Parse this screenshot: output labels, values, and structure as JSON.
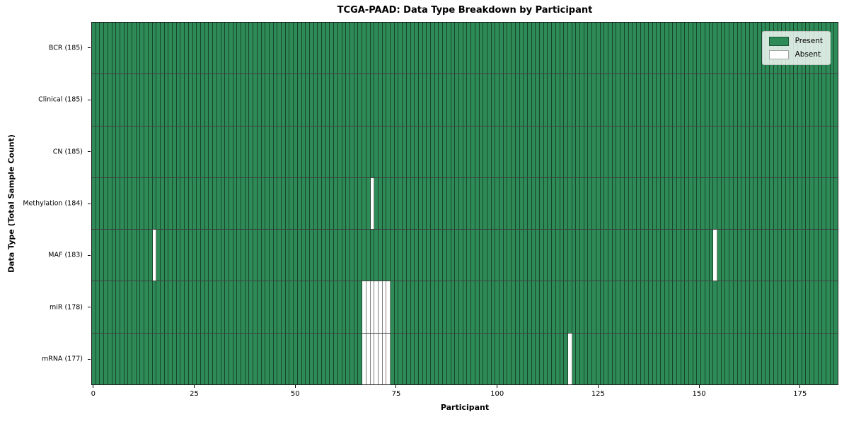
{
  "chart_data": {
    "type": "heatmap",
    "title": "TCGA-PAAD: Data Type Breakdown by Participant",
    "xlabel": "Participant",
    "ylabel": "Data Type (Total Sample Count)",
    "n_participants": 185,
    "x_axis_range": [
      -0.5,
      184.5
    ],
    "x_ticks": [
      0,
      25,
      50,
      75,
      100,
      125,
      150,
      175
    ],
    "grid": false,
    "legend_position": "upper-right",
    "rows": [
      {
        "data_type": "BCR",
        "label": "BCR (185)",
        "total_samples": 185,
        "absent_participants": []
      },
      {
        "data_type": "Clinical",
        "label": "Clinical (185)",
        "total_samples": 185,
        "absent_participants": []
      },
      {
        "data_type": "CN",
        "label": "CN (185)",
        "total_samples": 185,
        "absent_participants": []
      },
      {
        "data_type": "Methylation",
        "label": "Methylation (184)",
        "total_samples": 184,
        "absent_participants": [
          69
        ]
      },
      {
        "data_type": "MAF",
        "label": "MAF (183)",
        "total_samples": 183,
        "absent_participants": [
          15,
          154
        ]
      },
      {
        "data_type": "miR",
        "label": "miR (178)",
        "total_samples": 178,
        "absent_participants": [
          67,
          68,
          69,
          70,
          71,
          72,
          73
        ]
      },
      {
        "data_type": "mRNA",
        "label": "mRNA (177)",
        "total_samples": 177,
        "absent_participants": [
          67,
          68,
          69,
          70,
          71,
          72,
          73,
          118
        ]
      }
    ],
    "legend": [
      {
        "label": "Present",
        "color": "#2e8b57"
      },
      {
        "label": "Absent",
        "color": "#ffffff"
      }
    ],
    "colors": {
      "present": "#2e8b57",
      "absent": "#ffffff",
      "bar_edge": "rgba(0,0,0,0.5)",
      "row_separator": "rgba(0,0,0,0.75)",
      "spine": "#1a1a1a",
      "background": "#ffffff"
    }
  }
}
